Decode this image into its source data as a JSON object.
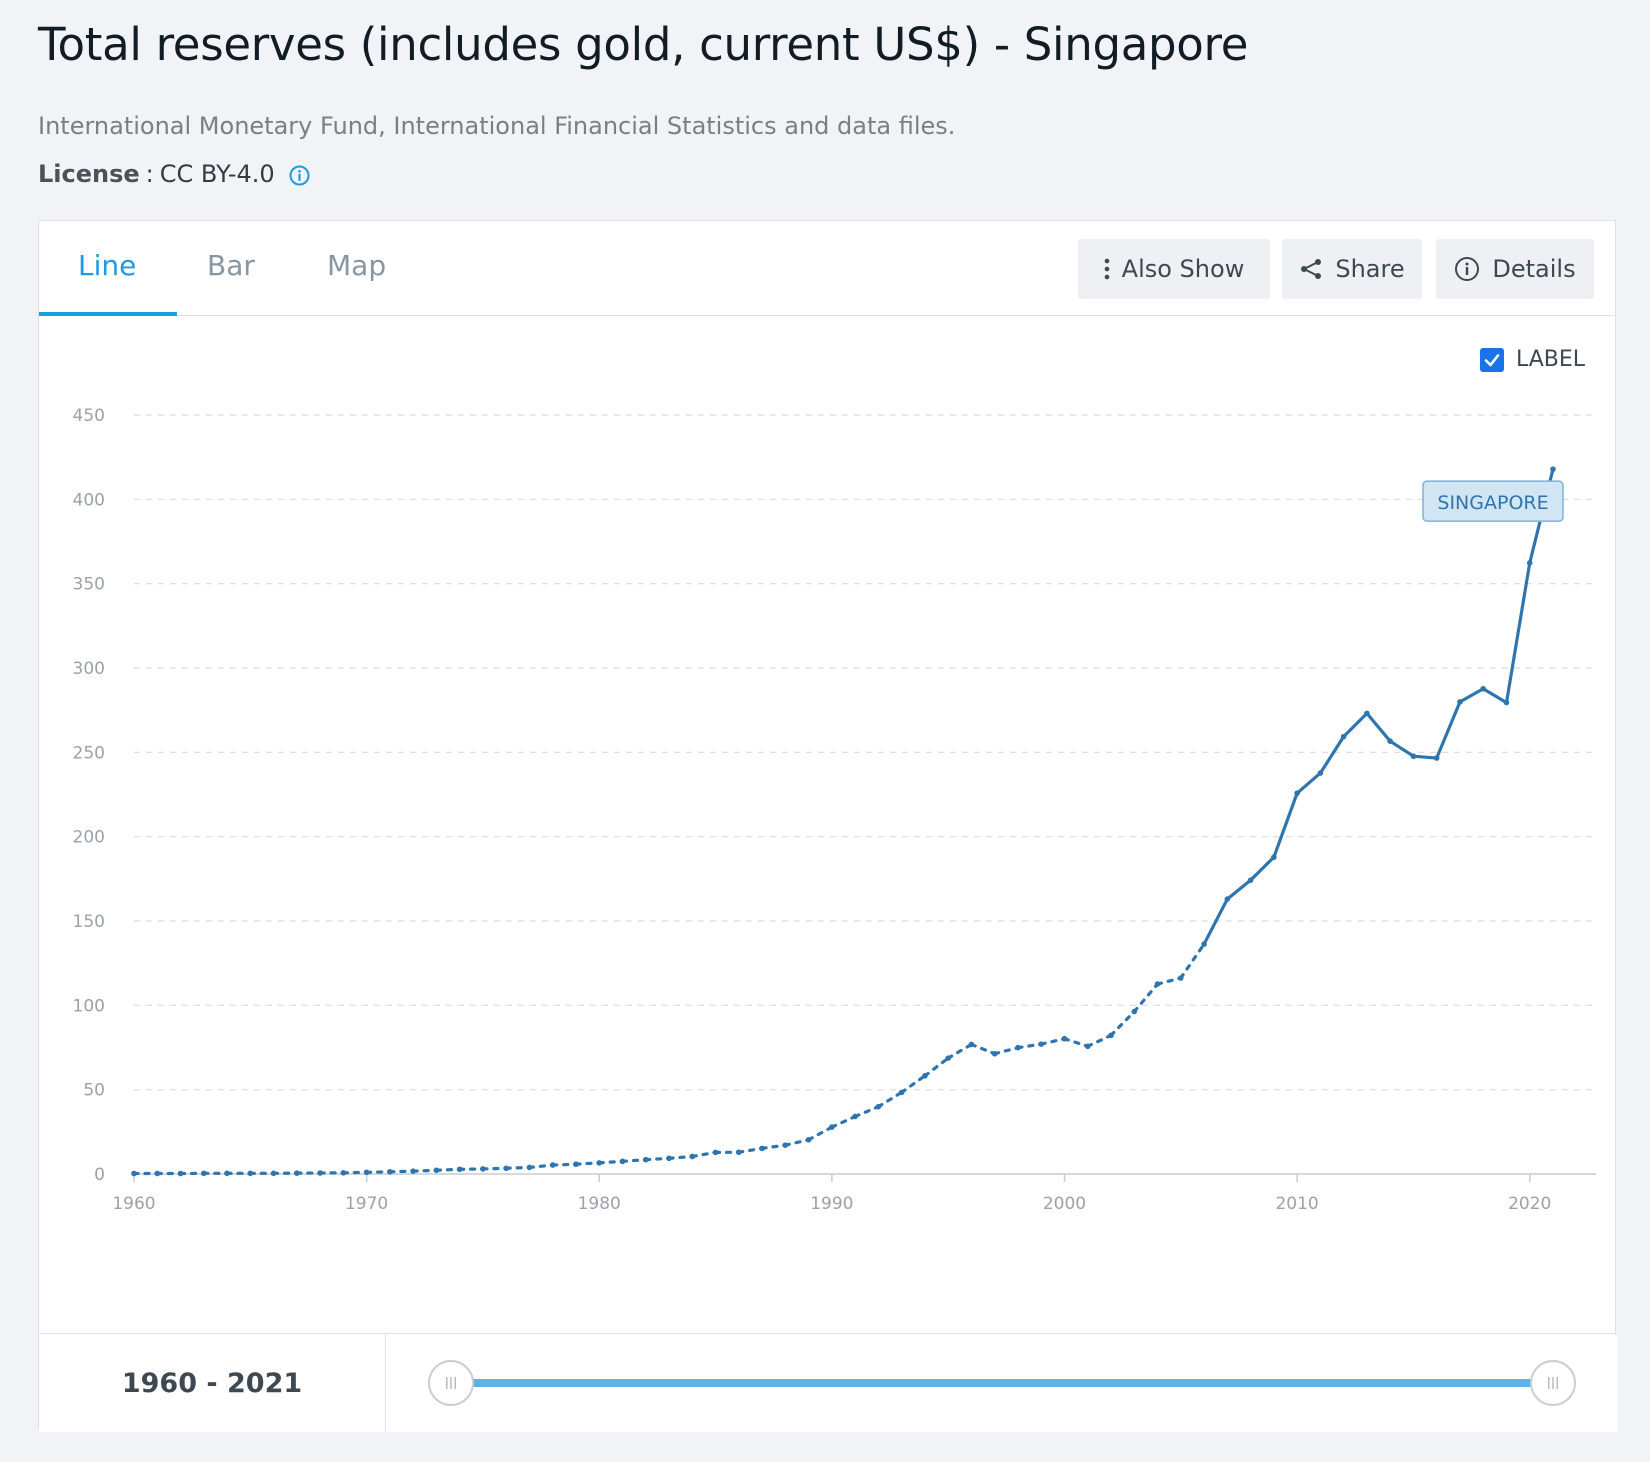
{
  "header": {
    "title": "Total reserves (includes gold, current US$) - Singapore",
    "source": "International Monetary Fund, International Financial Statistics and data files.",
    "license_key": "License",
    "license_sep": ":",
    "license_value": "CC BY-4.0"
  },
  "tabs": [
    {
      "label": "Line",
      "active": true
    },
    {
      "label": "Bar",
      "active": false
    },
    {
      "label": "Map",
      "active": false
    }
  ],
  "toolbar": {
    "also_show": "Also Show",
    "share": "Share",
    "details": "Details"
  },
  "label_toggle": {
    "label": "LABEL",
    "checked": true
  },
  "footer": {
    "range_start": "1960",
    "range_sep": " - ",
    "range_end": "2021"
  },
  "colors": {
    "accent": "#1d9ae0",
    "series": "#2e75b0",
    "label_bg": "#d2e5f3",
    "label_border": "#7fb2d9"
  },
  "chart_data": {
    "type": "line",
    "title": "Total reserves (includes gold, current US$) - Singapore",
    "xlabel": "",
    "ylabel": "",
    "xlim": [
      1960,
      2022
    ],
    "ylim": [
      0,
      450
    ],
    "x_ticks": [
      1960,
      1970,
      1980,
      1990,
      2000,
      2010,
      2020
    ],
    "y_ticks": [
      0,
      50,
      100,
      150,
      200,
      250,
      300,
      350,
      400,
      450
    ],
    "grid": true,
    "series": [
      {
        "name": "SINGAPORE",
        "x": [
          1960,
          1961,
          1962,
          1963,
          1964,
          1965,
          1966,
          1967,
          1968,
          1969,
          1970,
          1971,
          1972,
          1973,
          1974,
          1975,
          1976,
          1977,
          1978,
          1979,
          1980,
          1981,
          1982,
          1983,
          1984,
          1985,
          1986,
          1987,
          1988,
          1989,
          1990,
          1991,
          1992,
          1993,
          1994,
          1995,
          1996,
          1997,
          1998,
          1999,
          2000,
          2001,
          2002,
          2003,
          2004,
          2005,
          2006,
          2007,
          2008,
          2009,
          2010,
          2011,
          2012,
          2013,
          2014,
          2015,
          2016,
          2017,
          2018,
          2019,
          2020,
          2021
        ],
        "y": [
          0.3,
          0.3,
          0.3,
          0.4,
          0.4,
          0.4,
          0.4,
          0.5,
          0.6,
          0.7,
          1.0,
          1.3,
          1.7,
          2.2,
          2.8,
          3.0,
          3.4,
          3.9,
          5.3,
          5.8,
          6.6,
          7.5,
          8.5,
          9.3,
          10.4,
          12.8,
          12.9,
          15.2,
          17.1,
          20.3,
          27.8,
          34.1,
          39.9,
          48.4,
          58.2,
          68.7,
          76.8,
          71.3,
          74.9,
          77.0,
          80.2,
          75.7,
          82.2,
          96.3,
          112.6,
          116.2,
          136.3,
          163.0,
          174.2,
          187.8,
          225.8,
          237.7,
          259.3,
          273.1,
          256.6,
          247.7,
          246.6,
          279.9,
          287.7,
          279.5,
          362.3,
          417.9
        ]
      }
    ],
    "annotations": [
      "SINGAPORE"
    ]
  }
}
